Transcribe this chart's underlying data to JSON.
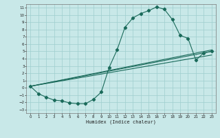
{
  "title": "",
  "xlabel": "Humidex (Indice chaleur)",
  "bg_color": "#c8e8e8",
  "line_color": "#1a6a5a",
  "xlim": [
    -0.5,
    23.5
  ],
  "ylim": [
    -3.5,
    11.5
  ],
  "xticks": [
    0,
    1,
    2,
    3,
    4,
    5,
    6,
    7,
    8,
    9,
    10,
    11,
    12,
    13,
    14,
    15,
    16,
    17,
    18,
    19,
    20,
    21,
    22,
    23
  ],
  "yticks": [
    -3,
    -2,
    -1,
    0,
    1,
    2,
    3,
    4,
    5,
    6,
    7,
    8,
    9,
    10,
    11
  ],
  "curve1_x": [
    0,
    1,
    2,
    3,
    4,
    5,
    6,
    7,
    8,
    9,
    10,
    11,
    12,
    13,
    14,
    15,
    16,
    17,
    18,
    19,
    20,
    21,
    22,
    23
  ],
  "curve1_y": [
    0.2,
    -0.8,
    -1.3,
    -1.7,
    -1.8,
    -2.1,
    -2.2,
    -2.2,
    -1.6,
    -0.6,
    2.8,
    5.2,
    8.3,
    9.6,
    10.2,
    10.6,
    11.1,
    10.8,
    9.4,
    7.2,
    6.8,
    3.8,
    4.8,
    5.0
  ],
  "line1_x": [
    0,
    23
  ],
  "line1_y": [
    0.2,
    4.5
  ],
  "line2_x": [
    0,
    23
  ],
  "line2_y": [
    0.2,
    5.0
  ],
  "line3_x": [
    0,
    23
  ],
  "line3_y": [
    0.2,
    5.2
  ]
}
